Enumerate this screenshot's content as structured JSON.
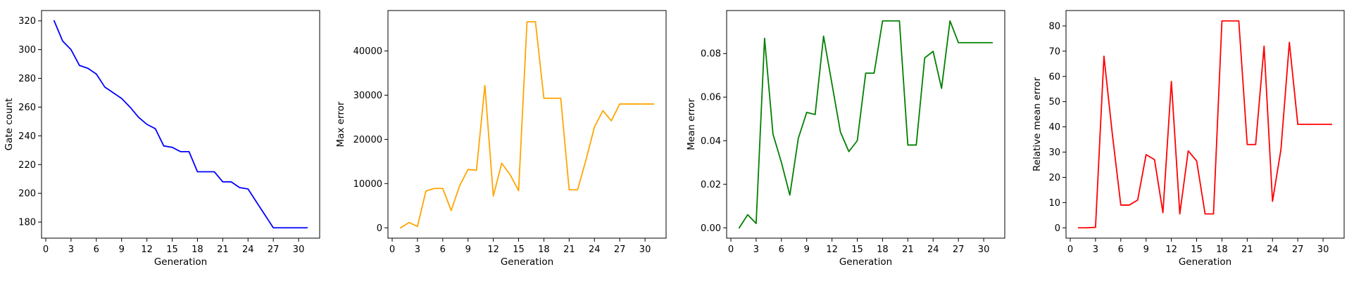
{
  "chart_data": [
    {
      "type": "line",
      "color": "#0000ff",
      "xlabel": "Generation",
      "ylabel": "Gate count",
      "xlim": [
        -0.5,
        32.5
      ],
      "ylim": [
        168.8,
        327.2
      ],
      "xticks": [
        0,
        3,
        6,
        9,
        12,
        15,
        18,
        21,
        24,
        27,
        30
      ],
      "yticks": [
        180,
        200,
        220,
        240,
        260,
        280,
        300,
        320
      ],
      "x": [
        1,
        2,
        3,
        4,
        5,
        6,
        7,
        8,
        9,
        10,
        11,
        12,
        13,
        14,
        15,
        16,
        17,
        18,
        19,
        20,
        21,
        22,
        23,
        24,
        25,
        26,
        27,
        28,
        29,
        30,
        31
      ],
      "y": [
        320,
        306,
        300,
        289,
        287,
        283,
        274,
        270,
        266,
        260,
        253,
        248,
        245,
        233,
        232,
        229,
        229,
        215,
        215,
        215,
        208,
        208,
        204,
        203,
        194,
        185,
        176,
        176,
        176,
        176,
        176
      ]
    },
    {
      "type": "line",
      "color": "#ffa500",
      "xlabel": "Generation",
      "ylabel": "Max error",
      "xlim": [
        -0.5,
        32.5
      ],
      "ylim": [
        -2340,
        49140
      ],
      "xticks": [
        0,
        3,
        6,
        9,
        12,
        15,
        18,
        21,
        24,
        27,
        30
      ],
      "yticks": [
        0,
        10000,
        20000,
        30000,
        40000
      ],
      "x": [
        1,
        2,
        3,
        4,
        5,
        6,
        7,
        8,
        9,
        10,
        11,
        12,
        13,
        14,
        15,
        16,
        17,
        18,
        19,
        20,
        21,
        22,
        23,
        24,
        25,
        26,
        27,
        28,
        29,
        30,
        31
      ],
      "y": [
        0,
        1200,
        300,
        8300,
        8900,
        8900,
        3900,
        9500,
        13200,
        13000,
        32200,
        7200,
        14600,
        12000,
        8400,
        46600,
        46600,
        29300,
        29300,
        29300,
        8600,
        8600,
        15400,
        22800,
        26500,
        24200,
        28000,
        28000,
        28000,
        28000,
        28000
      ]
    },
    {
      "type": "line",
      "color": "#008000",
      "xlabel": "Generation",
      "ylabel": "Mean error",
      "xlim": [
        -0.5,
        32.5
      ],
      "ylim": [
        -0.00475,
        0.09975
      ],
      "xticks": [
        0,
        3,
        6,
        9,
        12,
        15,
        18,
        21,
        24,
        27,
        30
      ],
      "yticks": [
        0.0,
        0.02,
        0.04,
        0.06,
        0.08
      ],
      "ytick_labels": [
        "0.00",
        "0.02",
        "0.04",
        "0.06",
        "0.08"
      ],
      "x": [
        1,
        2,
        3,
        4,
        5,
        6,
        7,
        8,
        9,
        10,
        11,
        12,
        13,
        14,
        15,
        16,
        17,
        18,
        19,
        20,
        21,
        22,
        23,
        24,
        25,
        26,
        27,
        28,
        29,
        30,
        31
      ],
      "y": [
        0.0,
        0.006,
        0.002,
        0.087,
        0.043,
        0.03,
        0.015,
        0.041,
        0.053,
        0.052,
        0.088,
        0.066,
        0.044,
        0.035,
        0.04,
        0.071,
        0.071,
        0.095,
        0.095,
        0.095,
        0.038,
        0.038,
        0.078,
        0.081,
        0.064,
        0.095,
        0.085,
        0.085,
        0.085,
        0.085,
        0.085
      ]
    },
    {
      "type": "line",
      "color": "#ff0000",
      "xlabel": "Generation",
      "ylabel": "Relative mean error",
      "xlim": [
        -0.5,
        32.5
      ],
      "ylim": [
        -4.1,
        86.1
      ],
      "xticks": [
        0,
        3,
        6,
        9,
        12,
        15,
        18,
        21,
        24,
        27,
        30
      ],
      "yticks": [
        0,
        10,
        20,
        30,
        40,
        50,
        60,
        70,
        80
      ],
      "x": [
        1,
        2,
        3,
        4,
        5,
        6,
        7,
        8,
        9,
        10,
        11,
        12,
        13,
        14,
        15,
        16,
        17,
        18,
        19,
        20,
        21,
        22,
        23,
        24,
        25,
        26,
        27,
        28,
        29,
        30,
        31
      ],
      "y": [
        0,
        0,
        0.2,
        68,
        37,
        9,
        9,
        11,
        29,
        27,
        6,
        58,
        5.5,
        30.5,
        26.5,
        5.5,
        5.5,
        82,
        82,
        82,
        33,
        33,
        72,
        10.5,
        31,
        73.5,
        41,
        41,
        41,
        41,
        41
      ]
    }
  ]
}
